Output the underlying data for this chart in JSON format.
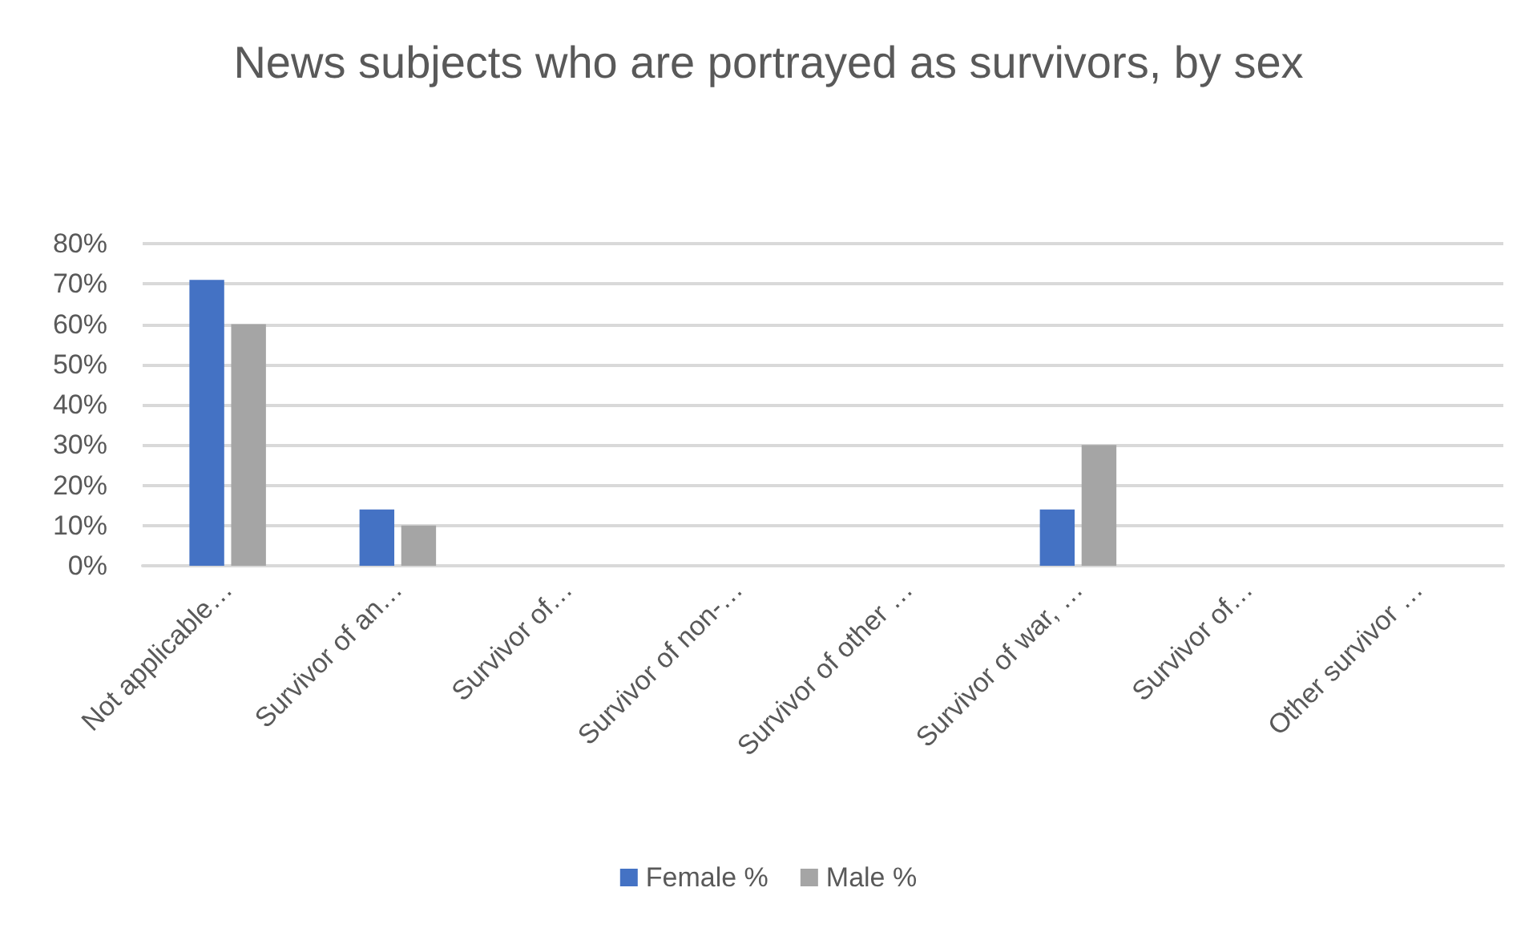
{
  "chart_data": {
    "type": "bar",
    "title": "News subjects who are portrayed as survivors, by sex",
    "categories": [
      "Not applicable…",
      "Survivor of an…",
      "Survivor of…",
      "Survivor of non-…",
      "Survivor of other …",
      "Survivor of war, …",
      "Survivor of…",
      "Other survivor …"
    ],
    "series": [
      {
        "name": "Female %",
        "color": "#4472c4",
        "values": [
          71,
          14,
          0,
          0,
          0,
          14,
          0,
          0
        ]
      },
      {
        "name": "Male %",
        "color": "#a5a5a5",
        "values": [
          60,
          10,
          0,
          0,
          0,
          30,
          0,
          0
        ]
      }
    ],
    "ylim": [
      0,
      80
    ],
    "yticks": [
      {
        "value": 0,
        "label": "0%"
      },
      {
        "value": 10,
        "label": "10%"
      },
      {
        "value": 20,
        "label": "20%"
      },
      {
        "value": 30,
        "label": "30%"
      },
      {
        "value": 40,
        "label": "40%"
      },
      {
        "value": 50,
        "label": "50%"
      },
      {
        "value": 60,
        "label": "60%"
      },
      {
        "value": 70,
        "label": "70%"
      },
      {
        "value": 80,
        "label": "80%"
      }
    ],
    "grid": true,
    "legend": "bottom"
  }
}
